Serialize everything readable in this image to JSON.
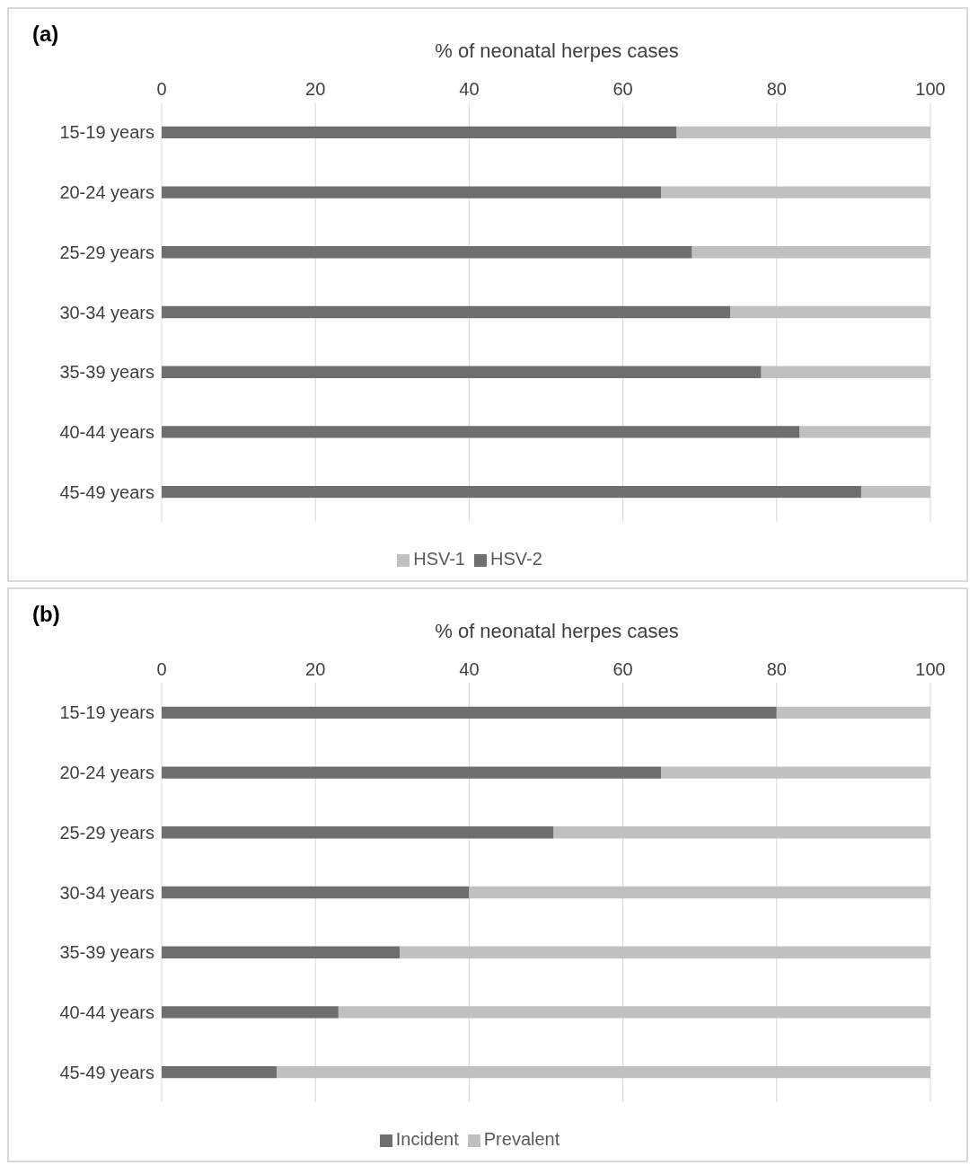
{
  "chart_data": [
    {
      "type": "bar",
      "orientation": "horizontal",
      "stacked": true,
      "title": "(a)",
      "xlabel": "% of neonatal herpes cases",
      "categories": [
        "15-19 years",
        "20-24 years",
        "25-29 years",
        "30-34 years",
        "35-39 years",
        "40-44 years",
        "45-49 years"
      ],
      "series": [
        {
          "name": "HSV-2",
          "color": "#6e6e6e",
          "values": [
            67,
            65,
            69,
            74,
            78,
            83,
            91
          ]
        },
        {
          "name": "HSV-1",
          "color": "#c0c0c0",
          "values": [
            33,
            35,
            31,
            26,
            22,
            17,
            9
          ]
        }
      ],
      "xlim": [
        0,
        100
      ],
      "xticks": [
        0,
        20,
        40,
        60,
        80,
        100
      ],
      "grid": "x",
      "legend": "bottom"
    },
    {
      "type": "bar",
      "orientation": "horizontal",
      "stacked": true,
      "title": "(b)",
      "xlabel": "% of neonatal herpes cases",
      "categories": [
        "15-19 years",
        "20-24 years",
        "25-29 years",
        "30-34 years",
        "35-39 years",
        "40-44 years",
        "45-49 years"
      ],
      "series": [
        {
          "name": "Incident",
          "color": "#6e6e6e",
          "values": [
            80,
            65,
            51,
            40,
            31,
            23,
            15
          ]
        },
        {
          "name": "Prevalent",
          "color": "#c0c0c0",
          "values": [
            20,
            35,
            49,
            60,
            69,
            77,
            85
          ]
        }
      ],
      "xlim": [
        0,
        100
      ],
      "xticks": [
        0,
        20,
        40,
        60,
        80,
        100
      ],
      "grid": "x",
      "legend": "bottom"
    }
  ]
}
